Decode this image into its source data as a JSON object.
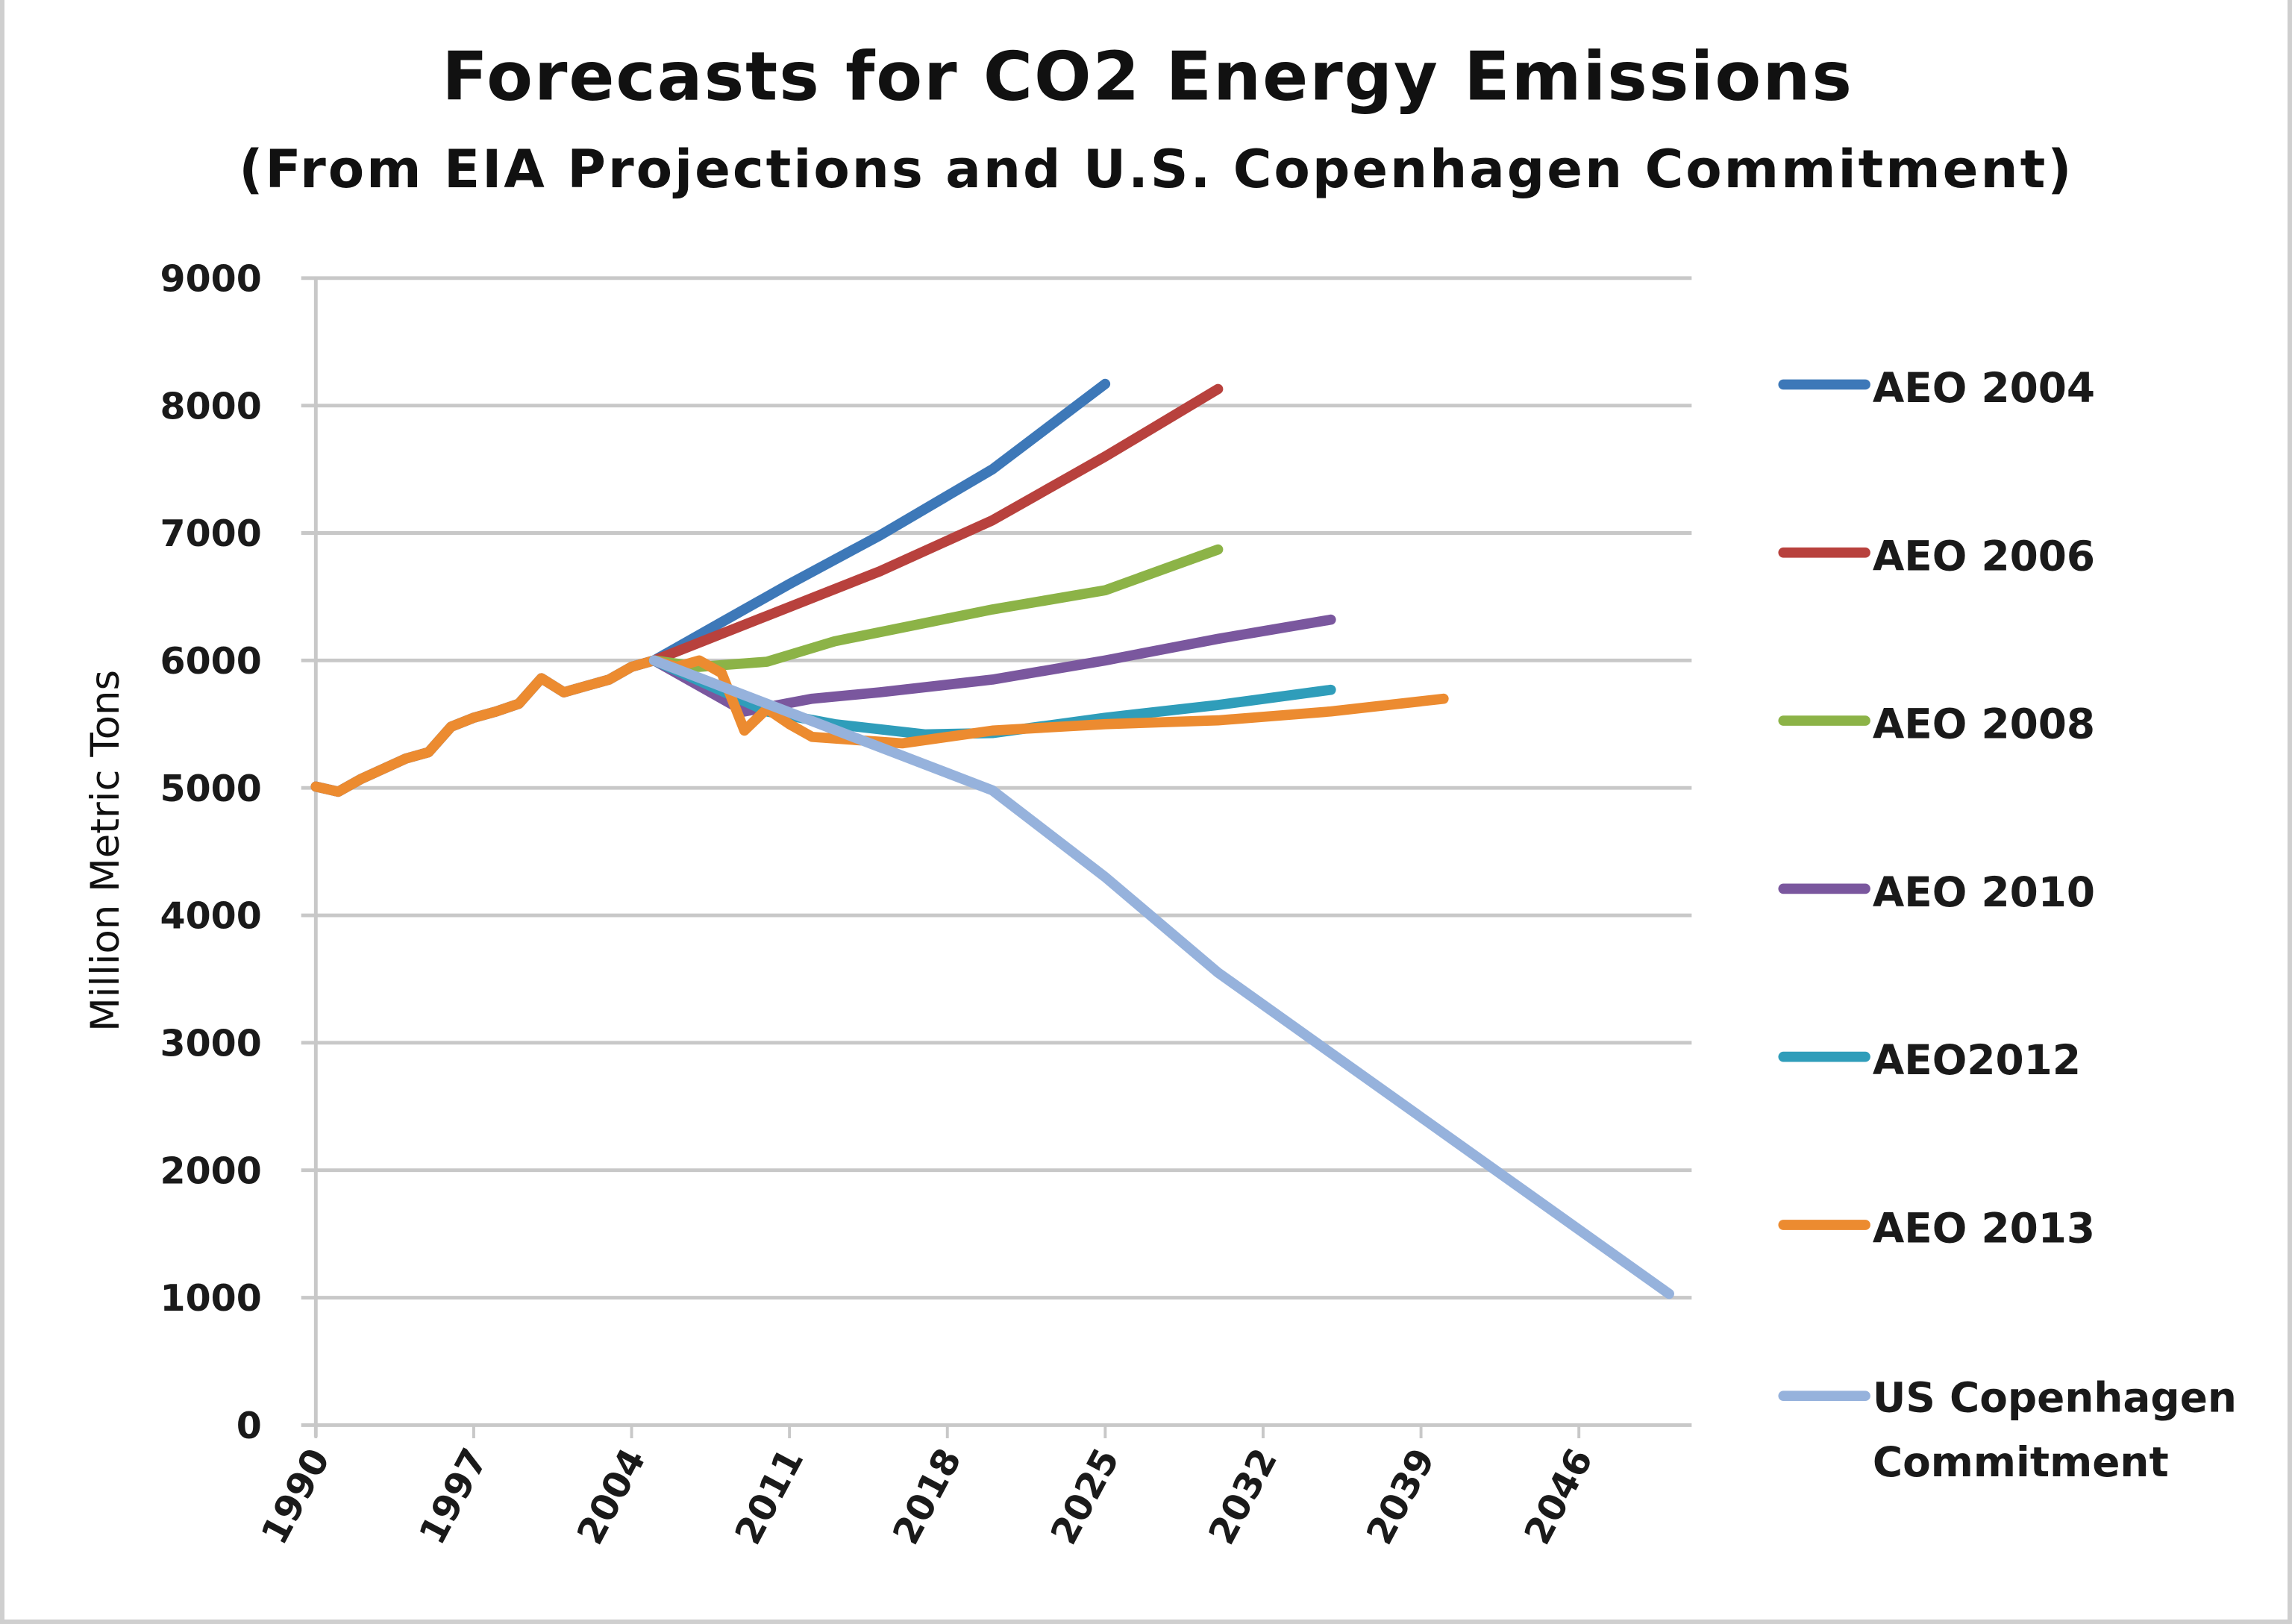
{
  "chart_data": {
    "type": "line",
    "title": "Forecasts for CO2 Energy Emissions",
    "subtitle": "(From EIA Projections and U.S. Copenhagen Commitment)",
    "xlabel": "",
    "ylabel": "Million Metric Tons",
    "xlim": [
      1990,
      2051
    ],
    "ylim": [
      0,
      9000
    ],
    "x_ticks": [
      "1990",
      "1997",
      "2004",
      "2011",
      "2018",
      "2025",
      "2032",
      "2039",
      "2046"
    ],
    "y_ticks": [
      "0",
      "1000",
      "2000",
      "3000",
      "4000",
      "5000",
      "6000",
      "7000",
      "8000",
      "9000"
    ],
    "grid": "horizontal",
    "legend_position": "right",
    "history": {
      "x": [
        1990,
        1991,
        1992,
        1993,
        1994,
        1995,
        1996,
        1997,
        1998,
        1999,
        2000,
        2001,
        2002,
        2003,
        2004,
        2005
      ],
      "y": [
        5010,
        4970,
        5070,
        5150,
        5230,
        5280,
        5480,
        5550,
        5600,
        5660,
        5860,
        5750,
        5800,
        5850,
        5950,
        6000
      ]
    },
    "series": [
      {
        "name": "AEO 2004",
        "color": "#3d78b8",
        "x": [
          2005,
          2008,
          2011,
          2015,
          2020,
          2025
        ],
        "y": [
          6000,
          6300,
          6600,
          6980,
          7500,
          8170
        ]
      },
      {
        "name": "AEO 2006",
        "color": "#b8413d",
        "x": [
          2005,
          2010,
          2015,
          2020,
          2025,
          2030
        ],
        "y": [
          6000,
          6350,
          6700,
          7100,
          7600,
          8130
        ]
      },
      {
        "name": "AEO 2008",
        "color": "#8cb347",
        "x": [
          2005,
          2007,
          2010,
          2013,
          2020,
          2025,
          2030
        ],
        "y": [
          6000,
          5950,
          5990,
          6150,
          6400,
          6550,
          6870
        ]
      },
      {
        "name": "AEO 2010",
        "color": "#7a579e",
        "x": [
          2005,
          2009,
          2012,
          2015,
          2020,
          2025,
          2030,
          2035
        ],
        "y": [
          6000,
          5600,
          5700,
          5750,
          5850,
          6000,
          6170,
          6320
        ]
      },
      {
        "name": "AEO2012",
        "color": "#2f9dba",
        "x": [
          2005,
          2010,
          2013,
          2017,
          2020,
          2025,
          2030,
          2035
        ],
        "y": [
          6000,
          5600,
          5500,
          5420,
          5430,
          5550,
          5650,
          5770
        ]
      },
      {
        "name": "AEO 2013",
        "color": "#ec8b30",
        "x": [
          2005,
          2006,
          2007,
          2008,
          2009,
          2010,
          2011,
          2012,
          2016,
          2020,
          2025,
          2030,
          2035,
          2040
        ],
        "y": [
          6000,
          5950,
          6000,
          5900,
          5450,
          5620,
          5500,
          5400,
          5350,
          5450,
          5500,
          5530,
          5600,
          5700
        ]
      },
      {
        "name": "US Copenhagen Commitment",
        "name_lines": [
          "US Copenhagen",
          "Commitment"
        ],
        "color": "#96b2dc",
        "x": [
          2005,
          2020,
          2025,
          2030,
          2050
        ],
        "y": [
          6000,
          4980,
          4300,
          3550,
          1030
        ]
      }
    ]
  }
}
